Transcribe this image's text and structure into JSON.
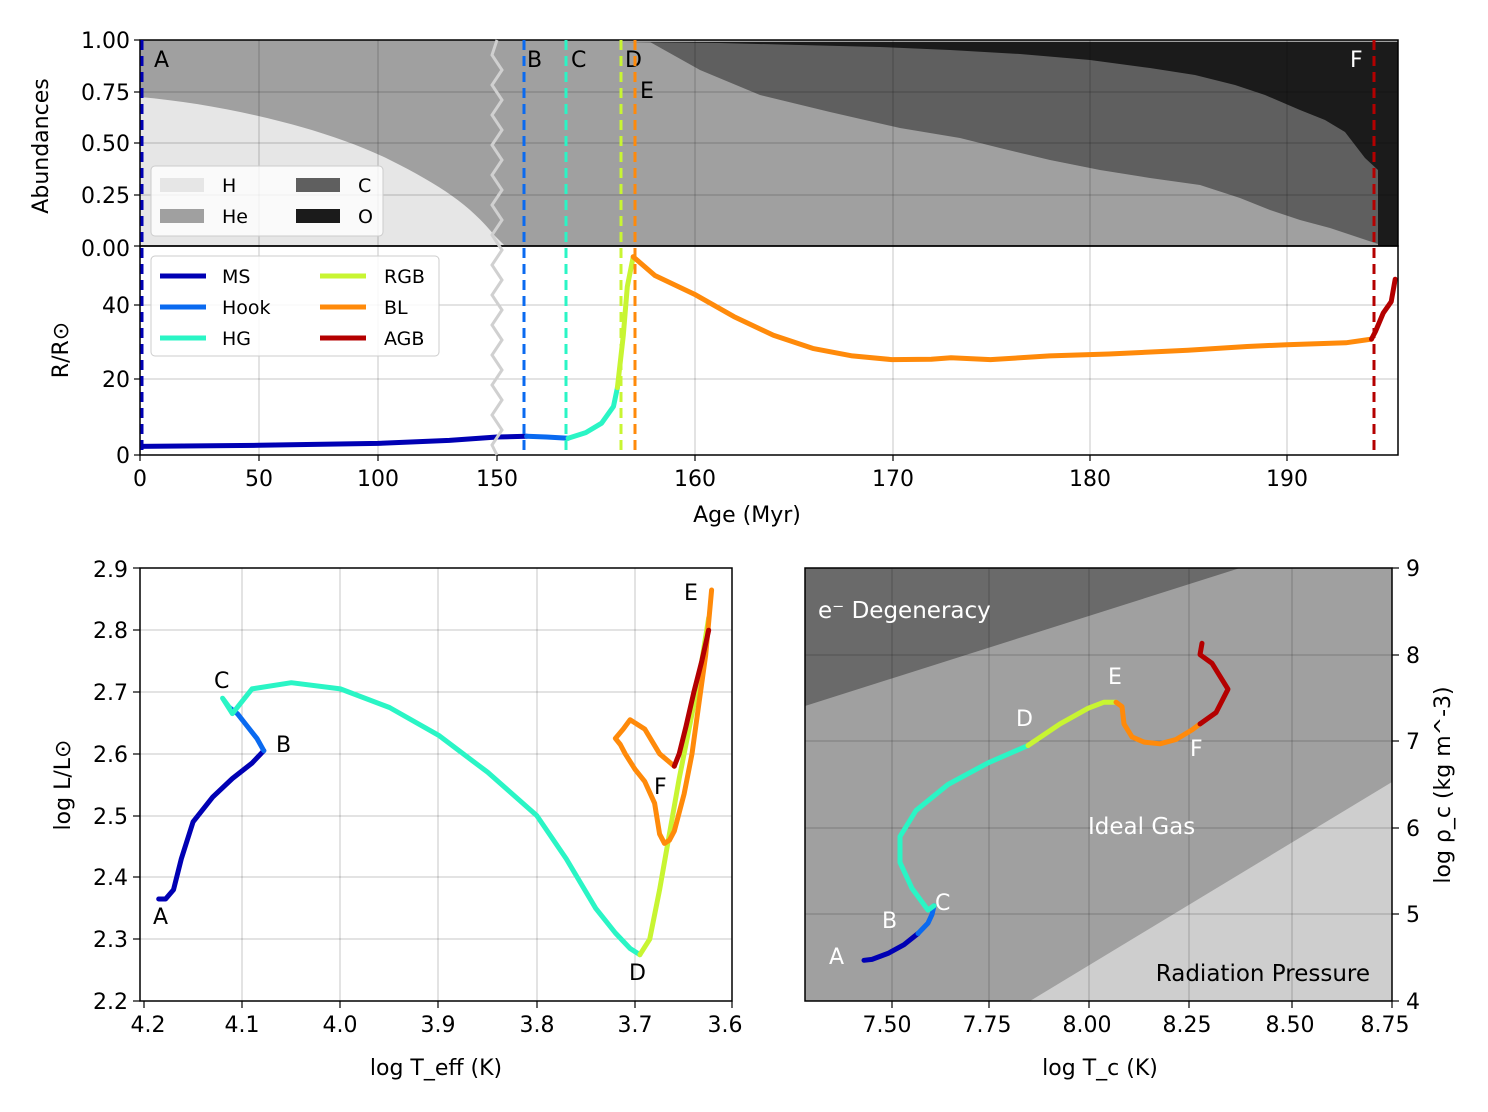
{
  "colors": {
    "MS": "#0000b4",
    "Hook": "#0a6af0",
    "HG": "#2af5c5",
    "RGB": "#c8f532",
    "BL": "#ff8a0a",
    "AGB": "#b40000",
    "H": "#e6e6e6",
    "He": "#a0a0a0",
    "C": "#5f5f5f",
    "O": "#1b1b1b"
  },
  "chart_data": [
    {
      "type": "area",
      "panel": "abundances",
      "ylabel": "Abundances",
      "ylim": [
        0,
        1
      ],
      "yticks": [
        "0.00",
        "0.25",
        "0.50",
        "0.75",
        "1.00"
      ],
      "legend": [
        "H",
        "He",
        "C",
        "O"
      ],
      "legend_position": "lower-left",
      "markers": [
        "A",
        "B",
        "C",
        "D",
        "E",
        "F"
      ],
      "series": [
        {
          "name": "H",
          "x": [
            0,
            20,
            50,
            80,
            110,
            130,
            150,
            155
          ],
          "values": [
            0.72,
            0.69,
            0.61,
            0.5,
            0.33,
            0.19,
            0.03,
            0.0
          ]
        },
        {
          "name": "C",
          "x": [
            157,
            160,
            165,
            170,
            175,
            180,
            185,
            190,
            193
          ],
          "values": [
            0.0,
            0.09,
            0.21,
            0.33,
            0.4,
            0.48,
            0.55,
            0.58,
            0.63
          ]
        },
        {
          "name": "O",
          "x": [
            157,
            160,
            165,
            170,
            175,
            180,
            185,
            190,
            193
          ],
          "values": [
            0.0,
            0.01,
            0.04,
            0.08,
            0.12,
            0.18,
            0.22,
            0.39,
            0.6
          ]
        }
      ]
    },
    {
      "type": "line",
      "panel": "radius",
      "xlabel": "Age (Myr)",
      "ylabel": "R/R⊙",
      "ylim": [
        0,
        53
      ],
      "yticks": [
        "0",
        "20",
        "40"
      ],
      "xticks": [
        "0",
        "50",
        "100",
        "150",
        "160",
        "170",
        "180",
        "190"
      ],
      "axis_break": "150 Myr (x-axis scale changes after break)",
      "legend": [
        "MS",
        "Hook",
        "HG",
        "RGB",
        "BL",
        "AGB"
      ],
      "legend_position": "upper-left",
      "phase_boundaries_myr": {
        "A": 0,
        "B": 151.5,
        "C": 153.6,
        "D": 156.3,
        "F": 194.4
      },
      "series": [
        {
          "name": "MS",
          "x": [
            0,
            50,
            100,
            130,
            150,
            151.5
          ],
          "values": [
            2.3,
            2.6,
            3.1,
            3.9,
            4.8,
            5.0
          ]
        },
        {
          "name": "Hook",
          "x": [
            151.5,
            152.5,
            153.6
          ],
          "values": [
            5.0,
            4.8,
            4.5
          ]
        },
        {
          "name": "HG",
          "x": [
            153.6,
            154.5,
            155.3,
            155.9,
            156.1
          ],
          "values": [
            4.5,
            6.0,
            8.5,
            13.0,
            18.0
          ]
        },
        {
          "name": "RGB",
          "x": [
            156.1,
            156.4,
            156.6,
            156.9
          ],
          "values": [
            18.0,
            32.0,
            45.0,
            53.0
          ]
        },
        {
          "name": "BL",
          "x": [
            156.9,
            158,
            160,
            162,
            164,
            166,
            168,
            170,
            172,
            173,
            175,
            178,
            181,
            185,
            188,
            190,
            193,
            194.3
          ],
          "values": [
            53,
            48,
            43,
            37,
            32,
            28.5,
            26.5,
            25.5,
            25.6,
            26,
            25.5,
            26.5,
            27,
            28,
            29,
            29.5,
            30,
            31
          ]
        },
        {
          "name": "AGB",
          "x": [
            194.3,
            194.5,
            194.9,
            195.3,
            195.5
          ],
          "values": [
            31,
            33,
            38,
            41,
            47
          ]
        }
      ]
    },
    {
      "type": "line",
      "panel": "hr_diagram",
      "xlabel": "log T_eff (K)",
      "ylabel": "log L/L⊙",
      "xlim": [
        4.2,
        3.6
      ],
      "ylim": [
        2.2,
        2.9
      ],
      "xticks": [
        "4.2",
        "4.1",
        "4.0",
        "3.9",
        "3.8",
        "3.7",
        "3.6"
      ],
      "yticks": [
        "2.2",
        "2.3",
        "2.4",
        "2.5",
        "2.6",
        "2.7",
        "2.8",
        "2.9"
      ],
      "point_labels": [
        "A",
        "B",
        "C",
        "D",
        "E",
        "F"
      ],
      "series": [
        {
          "name": "MS",
          "x": [
            4.185,
            4.178,
            4.17,
            4.162,
            4.15,
            4.13,
            4.11,
            4.09,
            4.078
          ],
          "y": [
            2.365,
            2.365,
            2.38,
            2.43,
            2.49,
            2.53,
            2.56,
            2.585,
            2.605
          ]
        },
        {
          "name": "Hook",
          "x": [
            4.078,
            4.085,
            4.095,
            4.105,
            4.113
          ],
          "y": [
            2.605,
            2.625,
            2.645,
            2.665,
            2.675
          ]
        },
        {
          "name": "HG",
          "x": [
            4.113,
            4.12,
            4.11,
            4.09,
            4.05,
            4.0,
            3.95,
            3.9,
            3.85,
            3.8,
            3.77,
            3.74,
            3.72,
            3.705,
            3.695
          ],
          "y": [
            2.675,
            2.69,
            2.665,
            2.705,
            2.715,
            2.705,
            2.675,
            2.63,
            2.57,
            2.5,
            2.43,
            2.35,
            2.31,
            2.285,
            2.275
          ]
        },
        {
          "name": "RGB",
          "x": [
            3.695,
            3.685,
            3.675,
            3.665,
            3.655,
            3.645,
            3.635,
            3.625
          ],
          "y": [
            2.275,
            2.3,
            2.38,
            2.47,
            2.56,
            2.64,
            2.72,
            2.82
          ]
        },
        {
          "name": "BL",
          "x": [
            3.622,
            3.628,
            3.635,
            3.642,
            3.65,
            3.66,
            3.665,
            3.67,
            3.675,
            3.68,
            3.69,
            3.7,
            3.71,
            3.715,
            3.72,
            3.712,
            3.705,
            3.7,
            3.69,
            3.675,
            3.66
          ],
          "y": [
            2.865,
            2.76,
            2.68,
            2.6,
            2.535,
            2.475,
            2.46,
            2.455,
            2.47,
            2.52,
            2.555,
            2.575,
            2.6,
            2.615,
            2.625,
            2.64,
            2.655,
            2.65,
            2.64,
            2.6,
            2.58
          ]
        },
        {
          "name": "AGB",
          "x": [
            3.66,
            3.655,
            3.648,
            3.64,
            3.632,
            3.625
          ],
          "y": [
            2.58,
            2.6,
            2.645,
            2.7,
            2.75,
            2.8
          ]
        }
      ]
    },
    {
      "type": "line",
      "panel": "central_conditions",
      "xlabel": "log T_c (K)",
      "ylabel": "log ρ_c (kg m^-3)",
      "xlim": [
        7.3,
        8.75
      ],
      "ylim": [
        4,
        9
      ],
      "xticks": [
        "7.50",
        "7.75",
        "8.00",
        "8.25",
        "8.50",
        "8.75"
      ],
      "yticks": [
        "4",
        "5",
        "6",
        "7",
        "8",
        "9"
      ],
      "regions": [
        "e⁻ Degeneracy",
        "Ideal Gas",
        "Radiation Pressure"
      ],
      "point_labels": [
        "A",
        "B",
        "C",
        "D",
        "E",
        "F"
      ],
      "series": [
        {
          "name": "MS",
          "x": [
            7.43,
            7.45,
            7.49,
            7.53,
            7.565
          ],
          "y": [
            4.47,
            4.48,
            4.55,
            4.65,
            4.78
          ]
        },
        {
          "name": "Hook",
          "x": [
            7.565,
            7.59,
            7.6,
            7.605
          ],
          "y": [
            4.78,
            4.9,
            5.0,
            5.1
          ]
        },
        {
          "name": "HG",
          "x": [
            7.605,
            7.59,
            7.55,
            7.52,
            7.52,
            7.56,
            7.64,
            7.74,
            7.84
          ],
          "y": [
            5.1,
            5.05,
            5.3,
            5.6,
            5.9,
            6.2,
            6.5,
            6.75,
            6.95
          ]
        },
        {
          "name": "RGB",
          "x": [
            7.84,
            7.92,
            7.99,
            8.03,
            8.06
          ],
          "y": [
            6.95,
            7.2,
            7.38,
            7.45,
            7.45
          ]
        },
        {
          "name": "BL",
          "x": [
            8.06,
            8.075,
            8.08,
            8.1,
            8.13,
            8.17,
            8.21,
            8.25,
            8.27
          ],
          "y": [
            7.45,
            7.4,
            7.2,
            7.05,
            6.99,
            6.97,
            7.02,
            7.13,
            7.2
          ]
        },
        {
          "name": "AGB",
          "x": [
            8.27,
            8.31,
            8.34,
            8.3,
            8.27,
            8.275
          ],
          "y": [
            7.2,
            7.33,
            7.6,
            7.9,
            8.0,
            8.13
          ]
        }
      ]
    }
  ]
}
